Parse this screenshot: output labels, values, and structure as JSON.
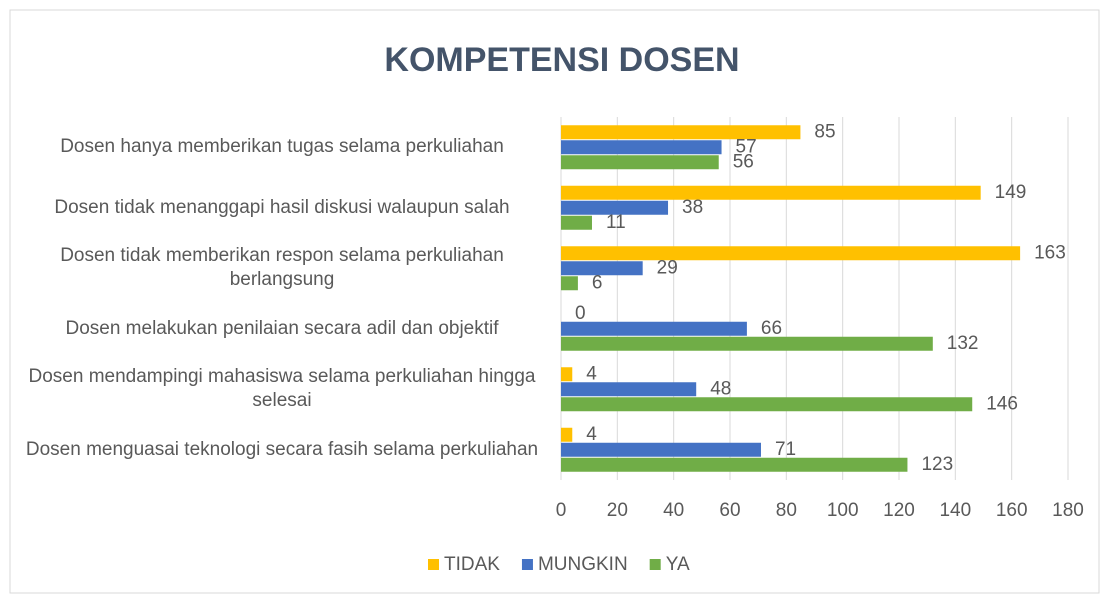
{
  "chart_data": {
    "type": "hbar",
    "title": "KOMPETENSI DOSEN",
    "categories": [
      "Dosen hanya memberikan tugas selama perkuliahan",
      "Dosen tidak menanggapi hasil diskusi walaupun salah",
      "Dosen tidak memberikan respon selama perkuliahan berlangsung",
      "Dosen melakukan penilaian secara adil dan objektif",
      "Dosen mendampingi mahasiswa selama perkuliahan hingga selesai",
      "Dosen menguasai teknologi secara fasih selama perkuliahan"
    ],
    "series": [
      {
        "name": "TIDAK",
        "color": "#ffc000",
        "values": [
          85,
          149,
          163,
          0,
          4,
          4
        ]
      },
      {
        "name": "MUNGKIN",
        "color": "#4472c4",
        "values": [
          57,
          38,
          29,
          66,
          48,
          71
        ]
      },
      {
        "name": "YA",
        "color": "#70ad47",
        "values": [
          56,
          11,
          6,
          132,
          146,
          123
        ]
      }
    ],
    "xlim": [
      0,
      180
    ],
    "xticks": [
      0,
      20,
      40,
      60,
      80,
      100,
      120,
      140,
      160,
      180
    ],
    "grid": true,
    "legend": "bottom"
  }
}
